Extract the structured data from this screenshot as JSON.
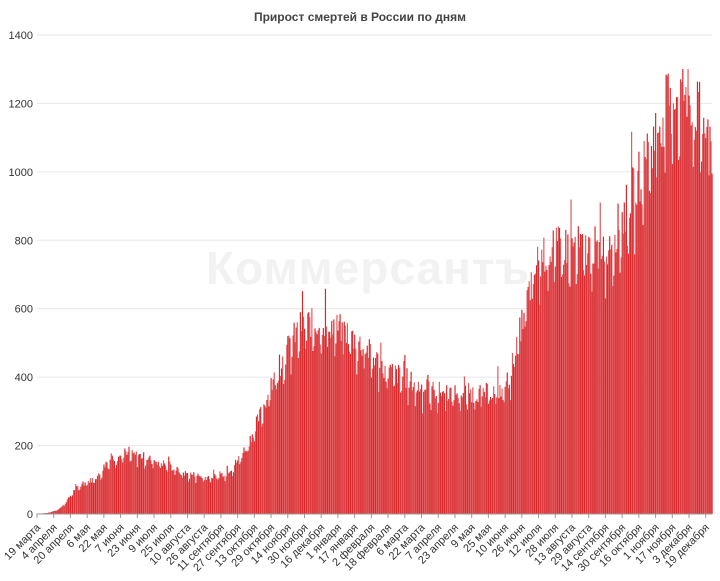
{
  "chart_data": {
    "type": "bar",
    "title": "Прирост смертей в России по дням",
    "watermark": "Коммерсантъ",
    "xlabel": "",
    "ylabel": "",
    "ylim": [
      0,
      1400
    ],
    "yticks": [
      0,
      200,
      400,
      600,
      800,
      1000,
      1200,
      1400
    ],
    "grid": true,
    "bar_color": "#d8282c",
    "x_ticks": [
      {
        "label": "19 марта",
        "day": 0
      },
      {
        "label": "4 апреля",
        "day": 16
      },
      {
        "label": "20 апреля",
        "day": 32
      },
      {
        "label": "6 мая",
        "day": 48
      },
      {
        "label": "22 мая",
        "day": 64
      },
      {
        "label": "7 июня",
        "day": 80
      },
      {
        "label": "23 июня",
        "day": 96
      },
      {
        "label": "9 июля",
        "day": 112
      },
      {
        "label": "25 июля",
        "day": 128
      },
      {
        "label": "10 августа",
        "day": 144
      },
      {
        "label": "26 августа",
        "day": 160
      },
      {
        "label": "11 сентября",
        "day": 176
      },
      {
        "label": "27 сентября",
        "day": 192
      },
      {
        "label": "13 октября",
        "day": 208
      },
      {
        "label": "29 октября",
        "day": 224
      },
      {
        "label": "14 ноября",
        "day": 240
      },
      {
        "label": "30 ноября",
        "day": 256
      },
      {
        "label": "16 декабря",
        "day": 272
      },
      {
        "label": "1 января",
        "day": 288
      },
      {
        "label": "17 января",
        "day": 304
      },
      {
        "label": "2 февраля",
        "day": 320
      },
      {
        "label": "18 февраля",
        "day": 336
      },
      {
        "label": "6 марта",
        "day": 352
      },
      {
        "label": "22 марта",
        "day": 368
      },
      {
        "label": "7 апреля",
        "day": 384
      },
      {
        "label": "23 апреля",
        "day": 400
      },
      {
        "label": "9 мая",
        "day": 416
      },
      {
        "label": "25 мая",
        "day": 432
      },
      {
        "label": "10 июня",
        "day": 448
      },
      {
        "label": "26 июня",
        "day": 464
      },
      {
        "label": "12 июля",
        "day": 480
      },
      {
        "label": "28 июля",
        "day": 496
      },
      {
        "label": "13 августа",
        "day": 512
      },
      {
        "label": "29 августа",
        "day": 528
      },
      {
        "label": "14 сентября",
        "day": 544
      },
      {
        "label": "30 сентября",
        "day": 560
      },
      {
        "label": "16 октября",
        "day": 576
      },
      {
        "label": "1 ноября",
        "day": 592
      },
      {
        "label": "17 ноября",
        "day": 608
      },
      {
        "label": "3 декабря",
        "day": 624
      },
      {
        "label": "19 декабря",
        "day": 640
      }
    ],
    "trend_points": [
      {
        "day": 0,
        "value": 1
      },
      {
        "day": 10,
        "value": 3
      },
      {
        "day": 18,
        "value": 10
      },
      {
        "day": 24,
        "value": 22
      },
      {
        "day": 30,
        "value": 45
      },
      {
        "day": 36,
        "value": 72
      },
      {
        "day": 44,
        "value": 88
      },
      {
        "day": 52,
        "value": 100
      },
      {
        "day": 60,
        "value": 115
      },
      {
        "day": 66,
        "value": 150
      },
      {
        "day": 72,
        "value": 165
      },
      {
        "day": 80,
        "value": 170
      },
      {
        "day": 90,
        "value": 175
      },
      {
        "day": 100,
        "value": 170
      },
      {
        "day": 110,
        "value": 160
      },
      {
        "day": 120,
        "value": 150
      },
      {
        "day": 130,
        "value": 135
      },
      {
        "day": 140,
        "value": 120
      },
      {
        "day": 150,
        "value": 115
      },
      {
        "day": 160,
        "value": 108
      },
      {
        "day": 170,
        "value": 110
      },
      {
        "day": 180,
        "value": 120
      },
      {
        "day": 188,
        "value": 140
      },
      {
        "day": 196,
        "value": 175
      },
      {
        "day": 204,
        "value": 220
      },
      {
        "day": 212,
        "value": 280
      },
      {
        "day": 220,
        "value": 340
      },
      {
        "day": 228,
        "value": 400
      },
      {
        "day": 236,
        "value": 460
      },
      {
        "day": 244,
        "value": 510
      },
      {
        "day": 252,
        "value": 550
      },
      {
        "day": 260,
        "value": 560
      },
      {
        "day": 266,
        "value": 555
      },
      {
        "day": 272,
        "value": 560
      },
      {
        "day": 280,
        "value": 555
      },
      {
        "day": 288,
        "value": 545
      },
      {
        "day": 296,
        "value": 535
      },
      {
        "day": 304,
        "value": 510
      },
      {
        "day": 312,
        "value": 490
      },
      {
        "day": 320,
        "value": 470
      },
      {
        "day": 328,
        "value": 440
      },
      {
        "day": 336,
        "value": 420
      },
      {
        "day": 344,
        "value": 410
      },
      {
        "day": 352,
        "value": 400
      },
      {
        "day": 362,
        "value": 380
      },
      {
        "day": 372,
        "value": 365
      },
      {
        "day": 384,
        "value": 360
      },
      {
        "day": 400,
        "value": 355
      },
      {
        "day": 416,
        "value": 355
      },
      {
        "day": 432,
        "value": 355
      },
      {
        "day": 446,
        "value": 365
      },
      {
        "day": 452,
        "value": 400
      },
      {
        "day": 458,
        "value": 480
      },
      {
        "day": 464,
        "value": 560
      },
      {
        "day": 470,
        "value": 640
      },
      {
        "day": 476,
        "value": 710
      },
      {
        "day": 482,
        "value": 760
      },
      {
        "day": 490,
        "value": 775
      },
      {
        "day": 500,
        "value": 780
      },
      {
        "day": 512,
        "value": 785
      },
      {
        "day": 524,
        "value": 780
      },
      {
        "day": 536,
        "value": 780
      },
      {
        "day": 546,
        "value": 790
      },
      {
        "day": 554,
        "value": 830
      },
      {
        "day": 562,
        "value": 880
      },
      {
        "day": 570,
        "value": 940
      },
      {
        "day": 578,
        "value": 1000
      },
      {
        "day": 586,
        "value": 1060
      },
      {
        "day": 594,
        "value": 1130
      },
      {
        "day": 600,
        "value": 1180
      },
      {
        "day": 606,
        "value": 1215
      },
      {
        "day": 612,
        "value": 1235
      },
      {
        "day": 618,
        "value": 1240
      },
      {
        "day": 624,
        "value": 1225
      },
      {
        "day": 630,
        "value": 1200
      },
      {
        "day": 636,
        "value": 1160
      },
      {
        "day": 642,
        "value": 1110
      },
      {
        "day": 646,
        "value": 1060
      }
    ],
    "last_day": 646
  }
}
